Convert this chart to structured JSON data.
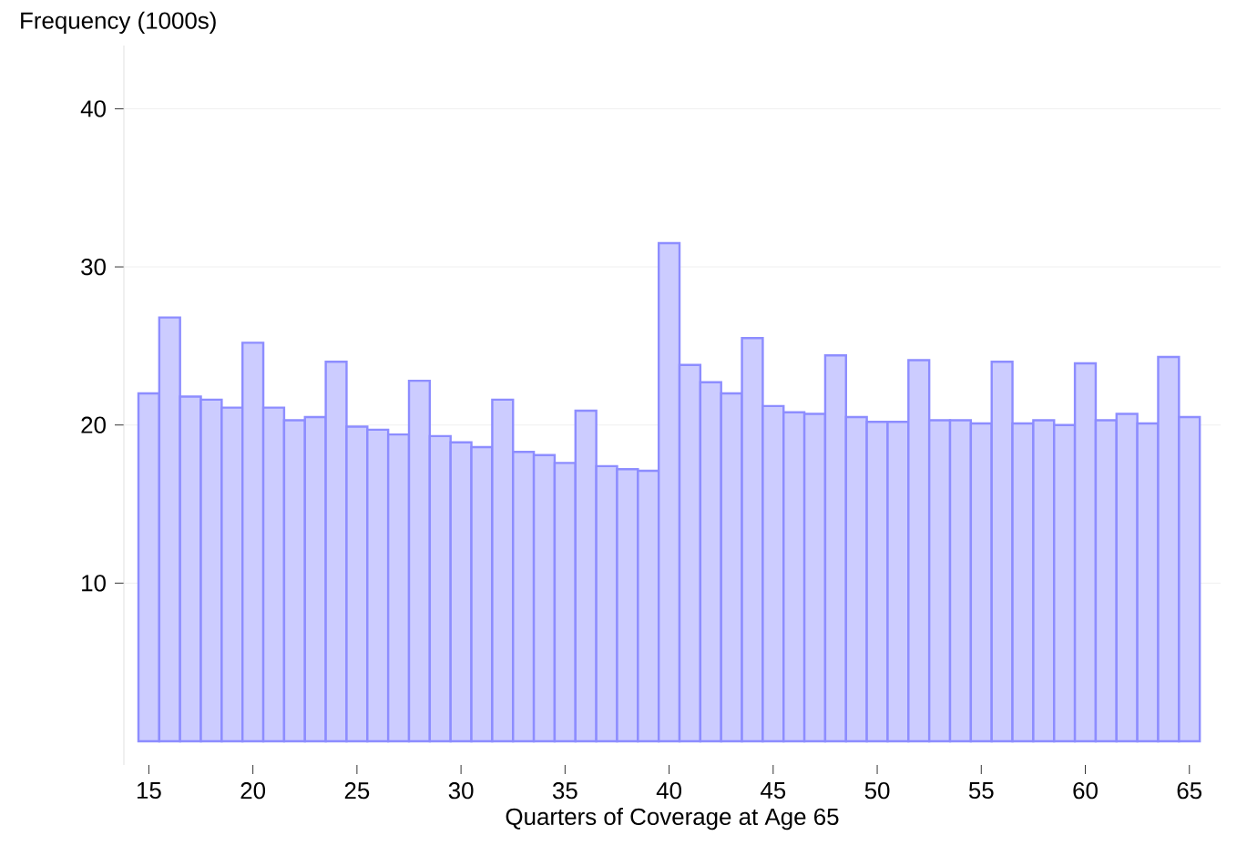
{
  "chart_data": {
    "type": "histogram",
    "xlabel": "Quarters of Coverage at Age 65",
    "ylabel": "Frequency (1000s)",
    "bins": [
      14.5,
      15.5,
      16.5,
      17.5,
      18.5,
      19.5,
      20.5,
      21.5,
      22.5,
      23.5,
      24.5,
      25.5,
      26.5,
      27.5,
      28.5,
      29.5,
      30.5,
      31.5,
      32.5,
      33.5,
      34.5,
      35.5,
      36.5,
      37.5,
      38.5,
      39.5,
      40.5,
      41.5,
      42.5,
      43.5,
      44.5,
      45.5,
      46.5,
      47.5,
      48.5,
      49.5,
      50.5,
      51.5,
      52.5,
      53.5,
      54.5,
      55.5,
      56.5,
      57.5,
      58.5,
      59.5,
      60.5,
      61.5,
      62.5,
      63.5,
      64.5,
      65.5
    ],
    "values": [
      22.0,
      26.8,
      21.8,
      21.6,
      21.1,
      25.2,
      21.1,
      20.3,
      20.5,
      24.0,
      19.9,
      19.7,
      19.4,
      22.8,
      19.3,
      18.9,
      18.6,
      21.6,
      18.3,
      18.1,
      17.6,
      20.9,
      17.4,
      17.2,
      17.1,
      31.5,
      23.8,
      22.7,
      22.0,
      25.5,
      21.2,
      20.8,
      20.7,
      24.4,
      20.5,
      20.2,
      20.2,
      24.1,
      20.3,
      20.3,
      20.1,
      24.0,
      20.1,
      20.3,
      20.0,
      23.9,
      20.3,
      20.7,
      20.1,
      24.3,
      20.5
    ],
    "color": "#ccccff",
    "xlim": [
      13.8,
      66.5
    ],
    "ylim": [
      -1.5,
      44
    ],
    "xticks": [
      15,
      20,
      25,
      30,
      35,
      40,
      45,
      50,
      55,
      60,
      65
    ],
    "yticks": [
      10,
      20,
      30,
      40
    ],
    "grid": "y"
  }
}
